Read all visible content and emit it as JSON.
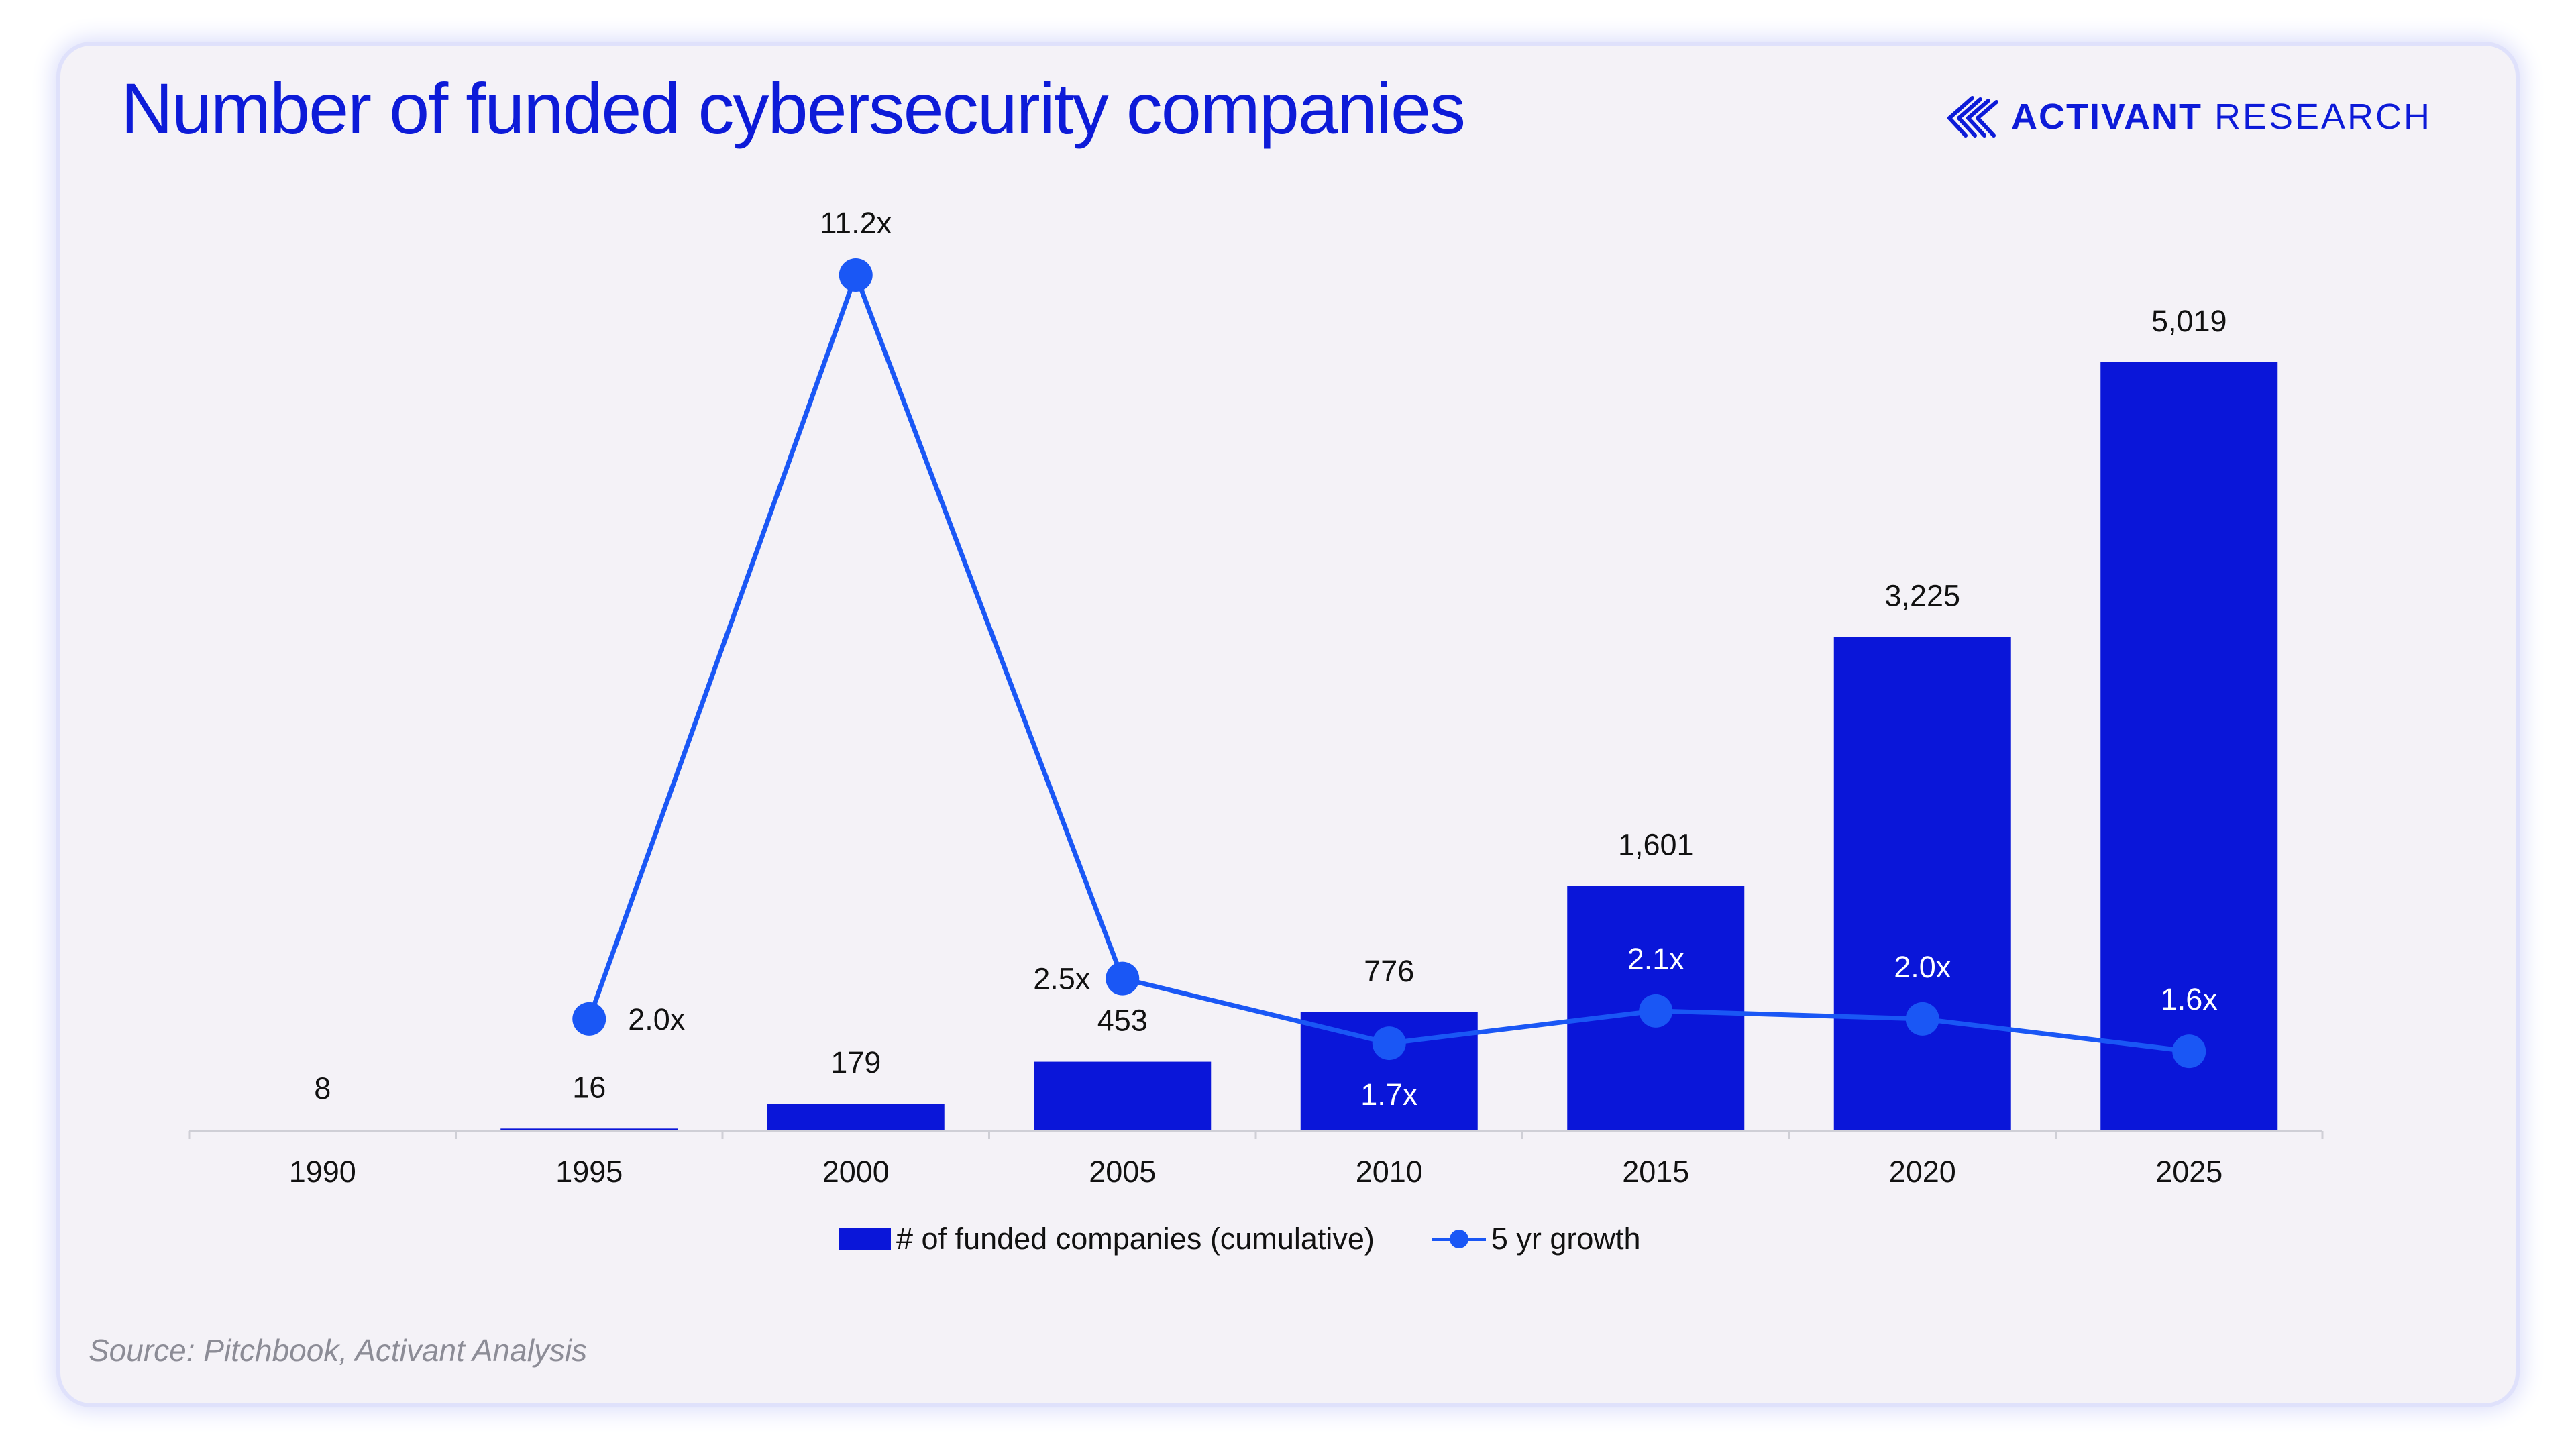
{
  "title": "Number of funded cybersecurity companies",
  "brand": {
    "name": "ACTIVANT",
    "sub": "RESEARCH",
    "logo_icon": "activant-stripes-icon"
  },
  "source": "Source: Pitchbook, Activant Analysis",
  "colors": {
    "bar": "#0a16d9",
    "line": "#1a57f5",
    "title": "#0d1bd8",
    "background": "#f4f2f7"
  },
  "chart_data": {
    "type": "bar",
    "categories": [
      "1990",
      "1995",
      "2000",
      "2005",
      "2010",
      "2015",
      "2020",
      "2025"
    ],
    "series": [
      {
        "name": "# of funded companies (cumulative)",
        "type": "bar",
        "axis": "left",
        "values": [
          8,
          16,
          179,
          453,
          776,
          1601,
          3225,
          5019
        ],
        "labels": [
          "8",
          "16",
          "179",
          "453",
          "776",
          "1,601",
          "3,225",
          "5,019"
        ]
      },
      {
        "name": "5 yr growth",
        "type": "line",
        "axis": "right",
        "values": [
          null,
          2.0,
          11.2,
          2.5,
          1.7,
          2.1,
          2.0,
          1.6
        ],
        "labels": [
          "",
          "2.0x",
          "11.2x",
          "2.5x",
          "1.7x",
          "2.1x",
          "2.0x",
          "1.6x"
        ]
      }
    ],
    "ylim": [
      0,
      5019
    ],
    "y2lim": [
      0,
      11.2
    ],
    "grid": false,
    "legend": "bottom-center"
  }
}
